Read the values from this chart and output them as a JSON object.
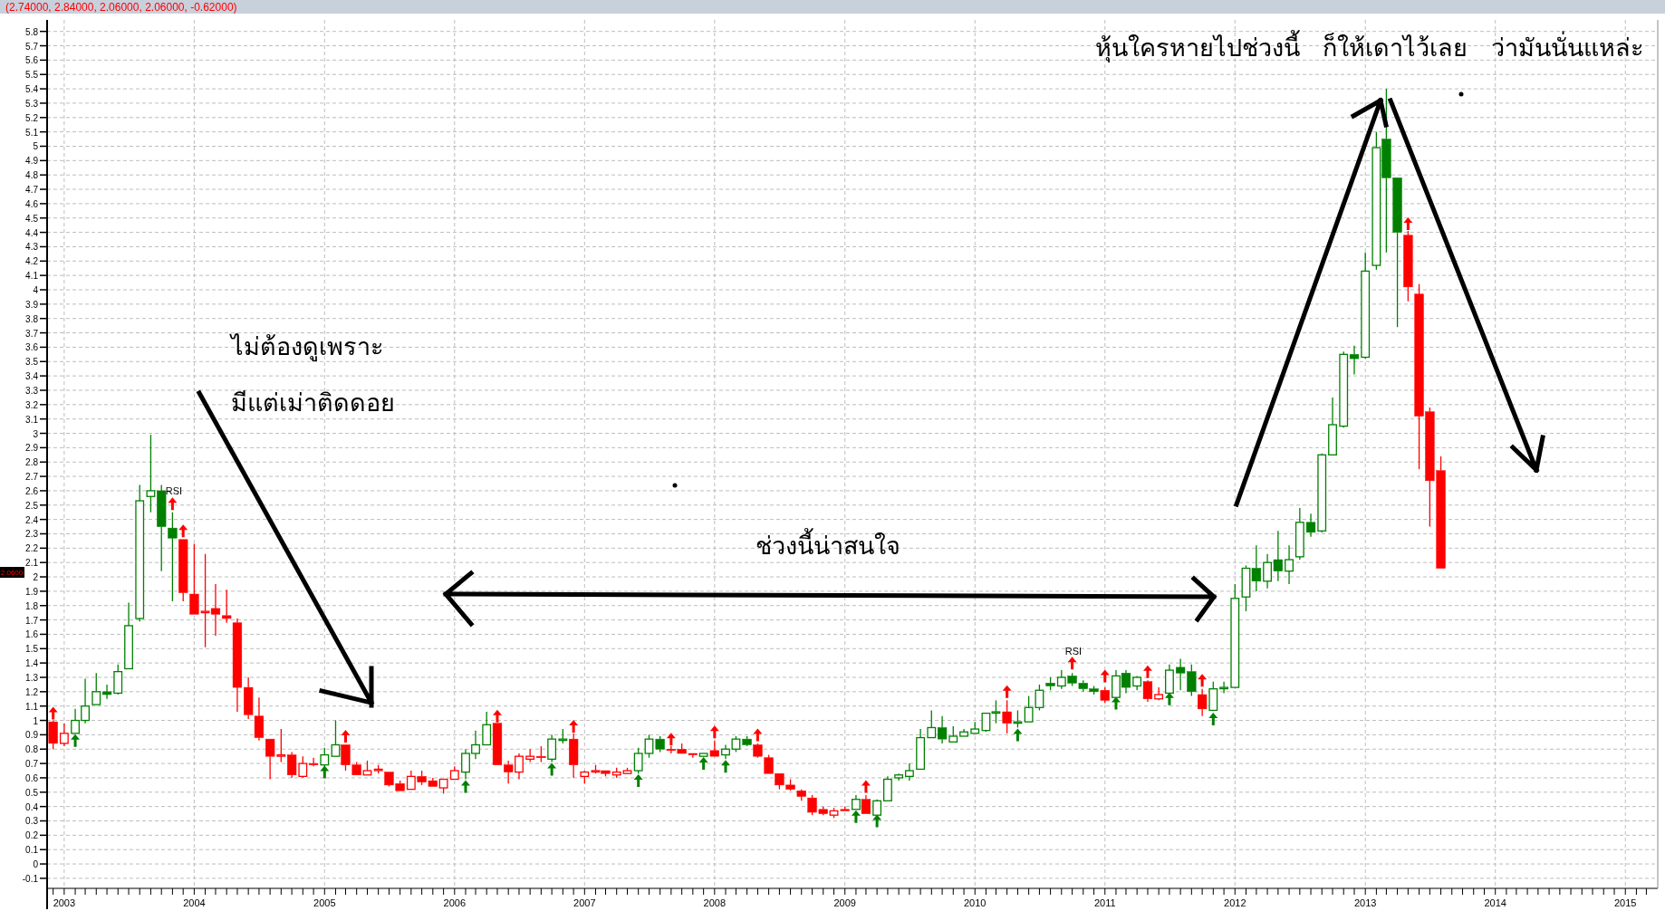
{
  "chart_data": {
    "type": "candlestick",
    "title": "(2.74000, 2.84000, 2.06000, 2.06000, -0.62000)",
    "annotations": [
      "หุ้นใครหายไปช่วงนี้   ก็ให้เดาไว้เลย   ว่ามันนั่นแหล่ะ",
      "ไม่ต้องดูเพราะ",
      "มีแต่เม่าติดดอย",
      "ช่วงนี้น่าสนใจ",
      "RSI",
      "RSI",
      "2.0600"
    ],
    "x": [
      "2002-12",
      "2003-01",
      "2003-02",
      "2003-03",
      "2003-04",
      "2003-05",
      "2003-06",
      "2003-07",
      "2003-08",
      "2003-09",
      "2003-10",
      "2003-11",
      "2003-12",
      "2004-01",
      "2004-02",
      "2004-03",
      "2004-04",
      "2004-05",
      "2004-06",
      "2004-07",
      "2004-08",
      "2004-09",
      "2004-10",
      "2004-11",
      "2004-12",
      "2005-01",
      "2005-02",
      "2005-03",
      "2005-04",
      "2005-05",
      "2005-06",
      "2005-07",
      "2005-08",
      "2005-09",
      "2005-10",
      "2005-11",
      "2005-12",
      "2006-01",
      "2006-02",
      "2006-03",
      "2006-04",
      "2006-05",
      "2006-06",
      "2006-07",
      "2006-08",
      "2006-09",
      "2006-10",
      "2006-11",
      "2006-12",
      "2007-01",
      "2007-02",
      "2007-03",
      "2007-04",
      "2007-05",
      "2007-06",
      "2007-07",
      "2007-08",
      "2007-09",
      "2007-10",
      "2007-11",
      "2007-12",
      "2008-01",
      "2008-02",
      "2008-03",
      "2008-04",
      "2008-05",
      "2008-06",
      "2008-07",
      "2008-08",
      "2008-09",
      "2008-10",
      "2008-11",
      "2008-12",
      "2009-01",
      "2009-02",
      "2009-03",
      "2009-04",
      "2009-05",
      "2009-06",
      "2009-07",
      "2009-08",
      "2009-09",
      "2009-10",
      "2009-11",
      "2009-12",
      "2010-01",
      "2010-02",
      "2010-03",
      "2010-04",
      "2010-05",
      "2010-06",
      "2010-07",
      "2010-08",
      "2010-09",
      "2010-10",
      "2010-11",
      "2010-12",
      "2011-01",
      "2011-02",
      "2011-03",
      "2011-04",
      "2011-05",
      "2011-06",
      "2011-07",
      "2011-08",
      "2011-09",
      "2011-10",
      "2011-11",
      "2011-12",
      "2012-01",
      "2012-02",
      "2012-03",
      "2012-04",
      "2012-05",
      "2012-06",
      "2012-07",
      "2012-08",
      "2012-09",
      "2012-10",
      "2012-11",
      "2012-12",
      "2013-01",
      "2013-02",
      "2013-03",
      "2013-04",
      "2013-05",
      "2013-06",
      "2013-07",
      "2013-08"
    ],
    "ohlc": [
      [
        0.99,
        1.0,
        0.8,
        0.84
      ],
      [
        0.84,
        0.98,
        0.82,
        0.91
      ],
      [
        0.91,
        1.08,
        0.91,
        1.0
      ],
      [
        1.0,
        1.29,
        0.98,
        1.1
      ],
      [
        1.11,
        1.33,
        1.11,
        1.2
      ],
      [
        1.2,
        1.25,
        1.15,
        1.18
      ],
      [
        1.19,
        1.39,
        1.18,
        1.34
      ],
      [
        1.36,
        1.82,
        1.36,
        1.66
      ],
      [
        1.71,
        2.64,
        1.69,
        2.53
      ],
      [
        2.56,
        2.99,
        2.45,
        2.6
      ],
      [
        2.6,
        2.64,
        2.04,
        2.35
      ],
      [
        2.34,
        2.45,
        1.83,
        2.27
      ],
      [
        2.26,
        2.26,
        1.83,
        1.89
      ],
      [
        1.88,
        2.23,
        1.74,
        1.74
      ],
      [
        1.76,
        2.16,
        1.51,
        1.76
      ],
      [
        1.78,
        1.95,
        1.59,
        1.74
      ],
      [
        1.73,
        1.91,
        1.68,
        1.71
      ],
      [
        1.68,
        1.71,
        1.06,
        1.23
      ],
      [
        1.23,
        1.3,
        1.01,
        1.04
      ],
      [
        1.03,
        1.16,
        0.86,
        0.88
      ],
      [
        0.87,
        0.87,
        0.59,
        0.75
      ],
      [
        0.76,
        0.94,
        0.71,
        0.76
      ],
      [
        0.76,
        0.78,
        0.6,
        0.62
      ],
      [
        0.61,
        0.75,
        0.6,
        0.7
      ],
      [
        0.7,
        0.74,
        0.68,
        0.69
      ],
      [
        0.69,
        0.81,
        0.61,
        0.76
      ],
      [
        0.75,
        1.0,
        0.75,
        0.83
      ],
      [
        0.83,
        0.83,
        0.65,
        0.69
      ],
      [
        0.69,
        0.71,
        0.62,
        0.62
      ],
      [
        0.62,
        0.72,
        0.62,
        0.65
      ],
      [
        0.66,
        0.69,
        0.63,
        0.66
      ],
      [
        0.64,
        0.64,
        0.54,
        0.55
      ],
      [
        0.56,
        0.58,
        0.51,
        0.51
      ],
      [
        0.52,
        0.65,
        0.52,
        0.61
      ],
      [
        0.61,
        0.65,
        0.55,
        0.57
      ],
      [
        0.58,
        0.6,
        0.54,
        0.54
      ],
      [
        0.53,
        0.59,
        0.49,
        0.59
      ],
      [
        0.59,
        0.68,
        0.59,
        0.65
      ],
      [
        0.64,
        0.8,
        0.59,
        0.77
      ],
      [
        0.77,
        0.93,
        0.73,
        0.83
      ],
      [
        0.83,
        1.06,
        0.83,
        0.97
      ],
      [
        0.98,
        0.98,
        0.69,
        0.69
      ],
      [
        0.69,
        0.72,
        0.56,
        0.64
      ],
      [
        0.64,
        0.77,
        0.59,
        0.75
      ],
      [
        0.73,
        0.8,
        0.71,
        0.75
      ],
      [
        0.75,
        0.82,
        0.71,
        0.74
      ],
      [
        0.73,
        0.9,
        0.71,
        0.87
      ],
      [
        0.87,
        0.94,
        0.84,
        0.87
      ],
      [
        0.87,
        0.91,
        0.6,
        0.69
      ],
      [
        0.61,
        0.65,
        0.56,
        0.64
      ],
      [
        0.65,
        0.69,
        0.63,
        0.65
      ],
      [
        0.65,
        0.65,
        0.61,
        0.63
      ],
      [
        0.62,
        0.67,
        0.6,
        0.64
      ],
      [
        0.63,
        0.67,
        0.63,
        0.65
      ],
      [
        0.65,
        0.81,
        0.63,
        0.77
      ],
      [
        0.77,
        0.9,
        0.74,
        0.87
      ],
      [
        0.87,
        0.89,
        0.78,
        0.8
      ],
      [
        0.8,
        0.82,
        0.77,
        0.79
      ],
      [
        0.8,
        0.84,
        0.77,
        0.77
      ],
      [
        0.77,
        0.77,
        0.74,
        0.76
      ],
      [
        0.75,
        0.77,
        0.75,
        0.77
      ],
      [
        0.79,
        0.86,
        0.75,
        0.75
      ],
      [
        0.76,
        0.83,
        0.73,
        0.8
      ],
      [
        0.8,
        0.89,
        0.78,
        0.87
      ],
      [
        0.87,
        0.89,
        0.82,
        0.83
      ],
      [
        0.83,
        0.84,
        0.74,
        0.75
      ],
      [
        0.74,
        0.76,
        0.63,
        0.63
      ],
      [
        0.63,
        0.63,
        0.52,
        0.55
      ],
      [
        0.55,
        0.59,
        0.51,
        0.52
      ],
      [
        0.51,
        0.52,
        0.44,
        0.47
      ],
      [
        0.46,
        0.48,
        0.34,
        0.36
      ],
      [
        0.38,
        0.4,
        0.34,
        0.35
      ],
      [
        0.34,
        0.39,
        0.32,
        0.37
      ],
      [
        0.38,
        0.4,
        0.37,
        0.37
      ],
      [
        0.38,
        0.48,
        0.38,
        0.45
      ],
      [
        0.45,
        0.48,
        0.35,
        0.35
      ],
      [
        0.34,
        0.45,
        0.34,
        0.44
      ],
      [
        0.44,
        0.61,
        0.44,
        0.59
      ],
      [
        0.6,
        0.63,
        0.58,
        0.62
      ],
      [
        0.61,
        0.7,
        0.58,
        0.65
      ],
      [
        0.66,
        0.94,
        0.66,
        0.88
      ],
      [
        0.88,
        1.07,
        0.88,
        0.95
      ],
      [
        0.95,
        1.03,
        0.84,
        0.87
      ],
      [
        0.85,
        0.96,
        0.85,
        0.89
      ],
      [
        0.89,
        0.94,
        0.89,
        0.92
      ],
      [
        0.91,
        0.99,
        0.91,
        0.94
      ],
      [
        0.93,
        1.05,
        0.92,
        1.05
      ],
      [
        1.06,
        1.14,
        0.98,
        1.06
      ],
      [
        1.06,
        1.14,
        0.91,
        0.98
      ],
      [
        0.99,
        1.07,
        0.95,
        0.99
      ],
      [
        0.99,
        1.17,
        0.99,
        1.09
      ],
      [
        1.09,
        1.25,
        1.07,
        1.21
      ],
      [
        1.26,
        1.3,
        1.21,
        1.24
      ],
      [
        1.24,
        1.35,
        1.22,
        1.3
      ],
      [
        1.31,
        1.33,
        1.24,
        1.26
      ],
      [
        1.26,
        1.28,
        1.2,
        1.22
      ],
      [
        1.22,
        1.24,
        1.18,
        1.2
      ],
      [
        1.21,
        1.23,
        1.12,
        1.14
      ],
      [
        1.16,
        1.35,
        1.16,
        1.31
      ],
      [
        1.33,
        1.35,
        1.19,
        1.23
      ],
      [
        1.24,
        1.31,
        1.21,
        1.3
      ],
      [
        1.27,
        1.28,
        1.13,
        1.15
      ],
      [
        1.15,
        1.23,
        1.14,
        1.18
      ],
      [
        1.19,
        1.39,
        1.19,
        1.35
      ],
      [
        1.37,
        1.43,
        1.21,
        1.33
      ],
      [
        1.34,
        1.39,
        1.17,
        1.2
      ],
      [
        1.18,
        1.22,
        1.03,
        1.08
      ],
      [
        1.07,
        1.27,
        1.07,
        1.22
      ],
      [
        1.23,
        1.27,
        1.19,
        1.23
      ],
      [
        1.23,
        1.95,
        1.23,
        1.85
      ],
      [
        1.86,
        2.08,
        1.76,
        2.06
      ],
      [
        2.06,
        2.22,
        1.9,
        1.97
      ],
      [
        1.97,
        2.16,
        1.92,
        2.1
      ],
      [
        2.12,
        2.32,
        1.97,
        2.04
      ],
      [
        2.04,
        2.22,
        1.95,
        2.12
      ],
      [
        2.14,
        2.48,
        2.12,
        2.38
      ],
      [
        2.38,
        2.44,
        2.28,
        2.31
      ],
      [
        2.32,
        2.86,
        2.31,
        2.85
      ],
      [
        2.85,
        3.25,
        2.85,
        3.06
      ],
      [
        3.05,
        3.57,
        3.04,
        3.55
      ],
      [
        3.55,
        3.61,
        3.41,
        3.52
      ],
      [
        3.53,
        4.26,
        3.52,
        4.13
      ],
      [
        4.17,
        5.1,
        4.14,
        4.99
      ],
      [
        5.05,
        5.4,
        4.26,
        4.78
      ],
      [
        4.78,
        4.78,
        3.74,
        4.4
      ],
      [
        4.38,
        4.41,
        3.92,
        4.02
      ],
      [
        3.97,
        4.04,
        2.75,
        3.12
      ],
      [
        3.15,
        3.18,
        2.35,
        2.67
      ],
      [
        2.74,
        2.84,
        2.06,
        2.06
      ]
    ],
    "colors": [
      "#ff0000",
      "#ff0000",
      "#008000",
      "#008000",
      "#008000",
      "#008000",
      "#008000",
      "#008000",
      "#008000",
      "#008000",
      "#008000",
      "#008000",
      "#ff0000",
      "#ff0000",
      "#ff0000",
      "#ff0000",
      "#ff0000",
      "#ff0000",
      "#ff0000",
      "#ff0000",
      "#ff0000",
      "#ff0000",
      "#ff0000",
      "#ff0000",
      "#ff0000",
      "#008000",
      "#008000",
      "#ff0000",
      "#ff0000",
      "#ff0000",
      "#ff0000",
      "#ff0000",
      "#ff0000",
      "#ff0000",
      "#ff0000",
      "#ff0000",
      "#ff0000",
      "#ff0000",
      "#008000",
      "#008000",
      "#008000",
      "#ff0000",
      "#ff0000",
      "#ff0000",
      "#ff0000",
      "#ff0000",
      "#008000",
      "#008000",
      "#ff0000",
      "#ff0000",
      "#ff0000",
      "#ff0000",
      "#ff0000",
      "#ff0000",
      "#008000",
      "#008000",
      "#008000",
      "#ff0000",
      "#ff0000",
      "#ff0000",
      "#008000",
      "#ff0000",
      "#008000",
      "#008000",
      "#008000",
      "#ff0000",
      "#ff0000",
      "#ff0000",
      "#ff0000",
      "#ff0000",
      "#ff0000",
      "#ff0000",
      "#ff0000",
      "#ff0000",
      "#008000",
      "#ff0000",
      "#008000",
      "#008000",
      "#008000",
      "#008000",
      "#008000",
      "#008000",
      "#008000",
      "#008000",
      "#008000",
      "#008000",
      "#008000",
      "#008000",
      "#ff0000",
      "#008000",
      "#008000",
      "#008000",
      "#008000",
      "#008000",
      "#008000",
      "#008000",
      "#008000",
      "#ff0000",
      "#008000",
      "#008000",
      "#008000",
      "#ff0000",
      "#ff0000",
      "#008000",
      "#008000",
      "#008000",
      "#ff0000",
      "#008000",
      "#008000",
      "#008000",
      "#008000",
      "#008000",
      "#008000",
      "#008000",
      "#008000",
      "#008000",
      "#008000",
      "#008000",
      "#008000",
      "#008000",
      "#008000",
      "#008000",
      "#008000",
      "#008000",
      "#008000",
      "#ff0000",
      "#ff0000",
      "#ff0000",
      "#ff0000"
    ],
    "series": [
      {
        "type": "scatter",
        "color": "#ff0000",
        "marker": "triangle",
        "x": [
          "2002-12",
          "2003-11",
          "2003-12",
          "2005-03",
          "2006-05",
          "2006-12",
          "2007-09",
          "2008-01",
          "2008-05",
          "2009-03",
          "2010-04",
          "2010-10",
          "2011-01",
          "2011-05",
          "2011-10",
          "2013-05"
        ],
        "values": [
          1.05,
          2.51,
          2.32,
          0.89,
          1.03,
          0.96,
          0.87,
          0.92,
          0.9,
          0.54,
          1.2,
          1.4,
          1.31,
          1.34,
          1.28,
          4.46
        ]
      },
      {
        "type": "scatter",
        "color": "#008000",
        "marker": "triangle",
        "x": [
          "2003-02",
          "2005-01",
          "2006-02",
          "2006-10",
          "2007-06",
          "2007-12",
          "2008-02",
          "2009-02",
          "2009-04",
          "2010-05",
          "2011-02",
          "2011-07",
          "2011-11"
        ],
        "values": [
          0.86,
          0.64,
          0.54,
          0.66,
          0.58,
          0.7,
          0.68,
          0.33,
          0.3,
          0.9,
          1.12,
          1.15,
          1.01
        ]
      }
    ],
    "xlim": [
      "2002-11-14",
      "2015-04-02"
    ],
    "ylim": [
      -0.17,
      5.88
    ],
    "xticks": [
      {
        "value": "2002-12",
        "label": null
      },
      {
        "value": "2003",
        "label": "2003"
      },
      {
        "value": "2003-02",
        "label": null
      },
      {
        "value": "2003-03",
        "label": null
      },
      {
        "value": "2003-04",
        "label": null
      },
      {
        "value": "2003-05",
        "label": null
      },
      {
        "value": "2003-06",
        "label": null
      },
      {
        "value": "2003-07",
        "label": null
      },
      {
        "value": "2003-08",
        "label": null
      },
      {
        "value": "2003-09",
        "label": null
      },
      {
        "value": "2003-10",
        "label": null
      },
      {
        "value": "2003-11",
        "label": null
      },
      {
        "value": "2003-12",
        "label": null
      },
      {
        "value": "2004",
        "label": "2004"
      },
      {
        "value": "2004-02",
        "label": null
      },
      {
        "value": "2004-03",
        "label": null
      },
      {
        "value": "2004-04",
        "label": null
      },
      {
        "value": "2004-05",
        "label": null
      },
      {
        "value": "2004-06",
        "label": null
      },
      {
        "value": "2004-07",
        "label": null
      },
      {
        "value": "2004-08",
        "label": null
      },
      {
        "value": "2004-09",
        "label": null
      },
      {
        "value": "2004-10",
        "label": null
      },
      {
        "value": "2004-11",
        "label": null
      },
      {
        "value": "2004-12",
        "label": null
      },
      {
        "value": "2005",
        "label": "2005"
      },
      {
        "value": "2005-02",
        "label": null
      },
      {
        "value": "2005-03",
        "label": null
      },
      {
        "value": "2005-04",
        "label": null
      },
      {
        "value": "2005-05",
        "label": null
      },
      {
        "value": "2005-06",
        "label": null
      },
      {
        "value": "2005-07",
        "label": null
      },
      {
        "value": "2005-08",
        "label": null
      },
      {
        "value": "2005-09",
        "label": null
      },
      {
        "value": "2005-10",
        "label": null
      },
      {
        "value": "2005-11",
        "label": null
      },
      {
        "value": "2005-12",
        "label": null
      },
      {
        "value": "2006",
        "label": "2006"
      },
      {
        "value": "2006-02",
        "label": null
      },
      {
        "value": "2006-03",
        "label": null
      },
      {
        "value": "2006-04",
        "label": null
      },
      {
        "value": "2006-05",
        "label": null
      },
      {
        "value": "2006-06",
        "label": null
      },
      {
        "value": "2006-07",
        "label": null
      },
      {
        "value": "2006-08",
        "label": null
      },
      {
        "value": "2006-09",
        "label": null
      },
      {
        "value": "2006-10",
        "label": null
      },
      {
        "value": "2006-11",
        "label": null
      },
      {
        "value": "2006-12",
        "label": null
      },
      {
        "value": "2007",
        "label": "2007"
      },
      {
        "value": "2007-02",
        "label": null
      },
      {
        "value": "2007-03",
        "label": null
      },
      {
        "value": "2007-04",
        "label": null
      },
      {
        "value": "2007-05",
        "label": null
      },
      {
        "value": "2007-06",
        "label": null
      },
      {
        "value": "2007-07",
        "label": null
      },
      {
        "value": "2007-08",
        "label": null
      },
      {
        "value": "2007-09",
        "label": null
      },
      {
        "value": "2007-10",
        "label": null
      },
      {
        "value": "2007-11",
        "label": null
      },
      {
        "value": "2007-12",
        "label": null
      },
      {
        "value": "2008",
        "label": "2008"
      },
      {
        "value": "2008-02",
        "label": null
      },
      {
        "value": "2008-03",
        "label": null
      },
      {
        "value": "2008-04",
        "label": null
      },
      {
        "value": "2008-05",
        "label": null
      },
      {
        "value": "2008-06",
        "label": null
      },
      {
        "value": "2008-07",
        "label": null
      },
      {
        "value": "2008-08",
        "label": null
      },
      {
        "value": "2008-09",
        "label": null
      },
      {
        "value": "2008-10",
        "label": null
      },
      {
        "value": "2008-11",
        "label": null
      },
      {
        "value": "2008-12",
        "label": null
      },
      {
        "value": "2009",
        "label": "2009"
      },
      {
        "value": "2009-02",
        "label": null
      },
      {
        "value": "2009-03",
        "label": null
      },
      {
        "value": "2009-04",
        "label": null
      },
      {
        "value": "2009-05",
        "label": null
      },
      {
        "value": "2009-06",
        "label": null
      },
      {
        "value": "2009-07",
        "label": null
      },
      {
        "value": "2009-08",
        "label": null
      },
      {
        "value": "2009-09",
        "label": null
      },
      {
        "value": "2009-10",
        "label": null
      },
      {
        "value": "2009-11",
        "label": null
      },
      {
        "value": "2009-12",
        "label": null
      },
      {
        "value": "2010",
        "label": "2010"
      },
      {
        "value": "2010-02",
        "label": null
      },
      {
        "value": "2010-03",
        "label": null
      },
      {
        "value": "2010-04",
        "label": null
      },
      {
        "value": "2010-05",
        "label": null
      },
      {
        "value": "2010-06",
        "label": null
      },
      {
        "value": "2010-07",
        "label": null
      },
      {
        "value": "2010-08",
        "label": null
      },
      {
        "value": "2010-09",
        "label": null
      },
      {
        "value": "2010-10",
        "label": null
      },
      {
        "value": "2010-11",
        "label": null
      },
      {
        "value": "2010-12",
        "label": null
      },
      {
        "value": "2011",
        "label": "2011"
      },
      {
        "value": "2011-02",
        "label": null
      },
      {
        "value": "2011-03",
        "label": null
      },
      {
        "value": "2011-04",
        "label": null
      },
      {
        "value": "2011-05",
        "label": null
      },
      {
        "value": "2011-06",
        "label": null
      },
      {
        "value": "2011-07",
        "label": null
      },
      {
        "value": "2011-08",
        "label": null
      },
      {
        "value": "2011-09",
        "label": null
      },
      {
        "value": "2011-10",
        "label": null
      },
      {
        "value": "2011-11",
        "label": null
      },
      {
        "value": "2011-12",
        "label": null
      },
      {
        "value": "2012",
        "label": "2012"
      },
      {
        "value": "2012-02",
        "label": null
      },
      {
        "value": "2012-03",
        "label": null
      },
      {
        "value": "2012-04",
        "label": null
      },
      {
        "value": "2012-05",
        "label": null
      },
      {
        "value": "2012-06",
        "label": null
      },
      {
        "value": "2012-07",
        "label": null
      },
      {
        "value": "2012-08",
        "label": null
      },
      {
        "value": "2012-09",
        "label": null
      },
      {
        "value": "2012-10",
        "label": null
      },
      {
        "value": "2012-11",
        "label": null
      },
      {
        "value": "2012-12",
        "label": null
      },
      {
        "value": "2013",
        "label": "2013"
      },
      {
        "value": "2013-02",
        "label": null
      },
      {
        "value": "2013-03",
        "label": null
      },
      {
        "value": "2013-04",
        "label": null
      },
      {
        "value": "2013-05",
        "label": null
      },
      {
        "value": "2013-06",
        "label": null
      },
      {
        "value": "2013-07",
        "label": null
      },
      {
        "value": "2013-08",
        "label": null
      },
      {
        "value": "2013-09",
        "label": null
      },
      {
        "value": "2013-10",
        "label": null
      },
      {
        "value": "2013-11",
        "label": null
      },
      {
        "value": "2013-12",
        "label": null
      },
      {
        "value": "2014",
        "label": "2014"
      },
      {
        "value": "2014-02",
        "label": null
      },
      {
        "value": "2014-03",
        "label": null
      },
      {
        "value": "2014-04",
        "label": null
      },
      {
        "value": "2014-05",
        "label": null
      },
      {
        "value": "2014-06",
        "label": null
      },
      {
        "value": "2014-07",
        "label": null
      },
      {
        "value": "2014-08",
        "label": null
      },
      {
        "value": "2014-09",
        "label": null
      },
      {
        "value": "2014-10",
        "label": null
      },
      {
        "value": "2014-11",
        "label": null
      },
      {
        "value": "2014-12",
        "label": null
      },
      {
        "value": "2015",
        "label": "2015"
      },
      {
        "value": "2015-02",
        "label": null
      },
      {
        "value": "2015-03",
        "label": null
      }
    ],
    "yticks": [
      -0.1,
      0,
      0.1,
      0.2,
      0.3,
      0.4,
      0.5,
      0.6,
      0.7,
      0.8,
      0.9,
      1,
      1.1,
      1.2,
      1.3,
      1.4,
      1.5,
      1.6,
      1.7,
      1.8,
      1.9,
      2,
      2.1,
      2.2,
      2.3,
      2.4,
      2.5,
      2.6,
      2.7,
      2.8,
      2.9,
      3,
      3.1,
      3.2,
      3.3,
      3.4,
      3.5,
      3.6,
      3.7,
      3.8,
      3.9,
      4,
      4.1,
      4.2,
      4.3,
      4.4,
      4.5,
      4.6,
      4.7,
      4.8,
      4.9,
      5,
      5.1,
      5.2,
      5.3,
      5.4,
      5.5,
      5.6,
      5.7,
      5.8
    ],
    "grid": true
  }
}
